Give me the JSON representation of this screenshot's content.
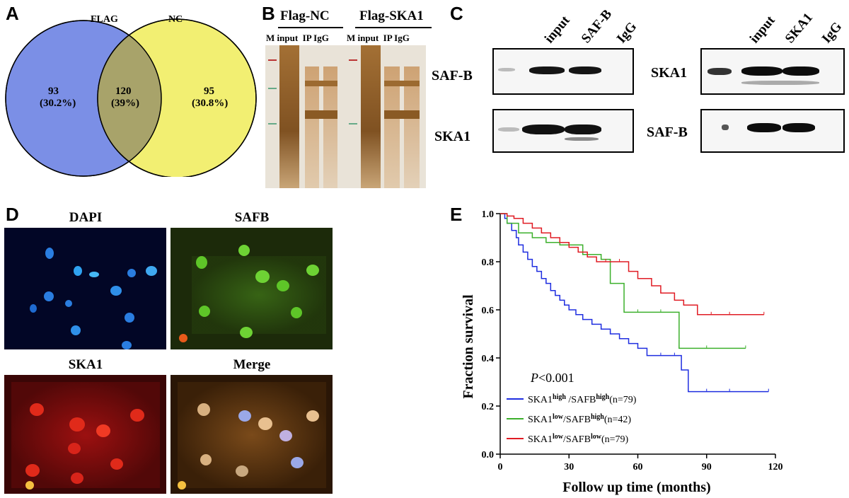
{
  "panels": {
    "A": {
      "label": "A",
      "left_title": "FLAG",
      "right_title": "NC",
      "left_count": "93",
      "left_pct": "(30.2%)",
      "mid_count": "120",
      "mid_pct": "(39%)",
      "right_count": "95",
      "right_pct": "(30.8%)",
      "colors": {
        "left": "#7b8fe6",
        "right": "#f2ef72",
        "overlap": "#a8a36a"
      }
    },
    "B": {
      "label": "B",
      "group1": "Flag-NC",
      "group2": "Flag-SKA1",
      "lanes1": "M input  IP IgG",
      "lanes2": "M input  IP IgG"
    },
    "C": {
      "label": "C",
      "left_cols": [
        "input",
        "SAF-B",
        "IgG"
      ],
      "right_cols": [
        "input",
        "SKA1",
        "IgG"
      ],
      "left_rows": [
        "SAF-B",
        "SKA1"
      ],
      "right_rows": [
        "SKA1",
        "SAF-B"
      ]
    },
    "D": {
      "label": "D",
      "titles": [
        "DAPI",
        "SAFB",
        "SKA1",
        "Merge"
      ]
    },
    "E": {
      "label": "E",
      "pvalue_italic": "P",
      "pvalue_rest": "<0.001",
      "legend": [
        {
          "base1": "SKA1",
          "sup1": "high",
          "mid": " /SAFB",
          "sup2": "high",
          "tail": "(n=79)",
          "color": "#1f2ee0"
        },
        {
          "base1": "SKA1",
          "sup1": "low",
          "mid": "/SAFB",
          "sup2": "high",
          "tail": "(n=42)",
          "color": "#3cb02c"
        },
        {
          "base1": "SKA1",
          "sup1": "low",
          "mid": "/SAFB",
          "sup2": "low",
          "tail": "(n=79)",
          "color": "#e01c24"
        }
      ]
    }
  },
  "chart_data": {
    "type": "line",
    "title": "",
    "xlabel": "Follow up time (months)",
    "ylabel": "Fraction survival",
    "xlim": [
      0,
      120
    ],
    "ylim": [
      0.0,
      1.0
    ],
    "xticks": [
      "0",
      "30",
      "60",
      "90",
      "120"
    ],
    "yticks": [
      "0.0",
      "0.2",
      "0.4",
      "0.6",
      "0.8",
      "1.0"
    ],
    "series": [
      {
        "name": "SKA1high /SAFBhigh(n=79)",
        "color": "#1f2ee0",
        "x": [
          0,
          2,
          3,
          5,
          7,
          8,
          10,
          12,
          14,
          16,
          18,
          20,
          22,
          24,
          26,
          28,
          30,
          33,
          36,
          40,
          44,
          48,
          52,
          56,
          60,
          64,
          70,
          76,
          79,
          82,
          90,
          100,
          117
        ],
        "y": [
          1.0,
          0.98,
          0.96,
          0.93,
          0.9,
          0.87,
          0.84,
          0.81,
          0.78,
          0.76,
          0.73,
          0.71,
          0.68,
          0.66,
          0.64,
          0.62,
          0.6,
          0.58,
          0.56,
          0.54,
          0.52,
          0.5,
          0.48,
          0.46,
          0.44,
          0.41,
          0.41,
          0.41,
          0.35,
          0.26,
          0.26,
          0.26,
          0.26
        ]
      },
      {
        "name": "SKA1low/SAFBhigh(n=42)",
        "color": "#3cb02c",
        "x": [
          0,
          3,
          8,
          14,
          20,
          26,
          36,
          44,
          48,
          54,
          60,
          70,
          78,
          90,
          107
        ],
        "y": [
          1.0,
          0.96,
          0.92,
          0.9,
          0.88,
          0.87,
          0.83,
          0.81,
          0.71,
          0.59,
          0.59,
          0.59,
          0.44,
          0.44,
          0.44
        ]
      },
      {
        "name": "SKA1low/SAFBlow(n=79)",
        "color": "#e01c24",
        "x": [
          0,
          3,
          6,
          10,
          14,
          18,
          22,
          26,
          30,
          34,
          38,
          42,
          46,
          52,
          56,
          60,
          66,
          70,
          76,
          80,
          86,
          92,
          100,
          115
        ],
        "y": [
          1.0,
          0.99,
          0.98,
          0.96,
          0.94,
          0.92,
          0.9,
          0.88,
          0.86,
          0.84,
          0.82,
          0.8,
          0.8,
          0.8,
          0.76,
          0.73,
          0.7,
          0.67,
          0.64,
          0.62,
          0.58,
          0.58,
          0.58,
          0.58
        ]
      }
    ]
  }
}
